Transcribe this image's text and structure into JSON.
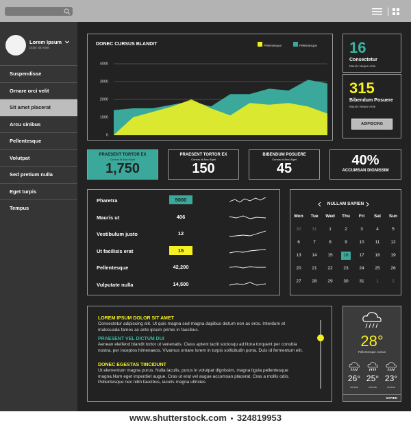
{
  "sidebar": {
    "user_name": "Lorem Ipsum",
    "user_subtitle": "Dolor Sit Amet",
    "selected": 2,
    "menu": [
      "Suspendisse",
      "Ornare orci velit",
      "Sit amet placerat",
      "Arcu sinibus",
      "Pellentesque",
      "Volutpat",
      "Sed pretium nulla",
      "Eget turpis",
      "Tempus"
    ]
  },
  "chart_data": {
    "type": "area",
    "title": "DONEC CURSUS BLANDIT",
    "categories": [
      null,
      null,
      null,
      null,
      null,
      null,
      null,
      null,
      null,
      null,
      null,
      null
    ],
    "series": [
      {
        "name": "Pellentesque",
        "color": "#f0f020",
        "values": [
          0,
          1000,
          1300,
          1600,
          2000,
          1500,
          1100,
          1800,
          1700,
          1800,
          1600,
          1200
        ]
      },
      {
        "name": "Pellentesque",
        "color": "#3aa89a",
        "values": [
          1400,
          1500,
          1500,
          1700,
          1900,
          1600,
          2300,
          2300,
          2600,
          2500,
          3100,
          2900
        ]
      }
    ],
    "ylim": [
      0,
      4000
    ],
    "yticks": [
      0,
      1000,
      2000,
      3000,
      4000
    ],
    "grid": true
  },
  "stats": [
    {
      "value": "16",
      "label": "Consectetur",
      "sublabel": "Mauris Neque Ante",
      "color": "#3ab5a0"
    },
    {
      "value": "315",
      "label": "Bibendum Posuere",
      "sublabel": "Mauris Neque Ante",
      "color": "#f5f020",
      "button": "ADIPISCING"
    }
  ],
  "cards": [
    {
      "title": "PRAESENT TORTOR EX",
      "subtitle": "Cursus Id Arcu Eget",
      "value": "1,750",
      "highlight": true
    },
    {
      "title": "PRAESENT TORTOR EX",
      "subtitle": "Cursus Id Arcu Eget",
      "value": "150"
    },
    {
      "title": "BIBENDUM POSUERE",
      "subtitle": "Cursus Id Arcu Eget",
      "value": "45"
    },
    {
      "value": "40%",
      "title": "ACCUMSAN DIGNISSIM"
    }
  ],
  "table": {
    "rows": [
      {
        "label": "Pharetra",
        "value": "5000",
        "highlight": "#3aa89a"
      },
      {
        "label": "Mauris ut",
        "value": "406"
      },
      {
        "label": "Vestibulum justo",
        "value": "12"
      },
      {
        "label": "Ut facilisis erat",
        "value": "15",
        "highlight": "#f5f020"
      },
      {
        "label": "Pellentesque",
        "value": "42,200"
      },
      {
        "label": "Vulputate nulla",
        "value": "14,500"
      }
    ]
  },
  "calendar": {
    "title": "NULLAM SAPIEN",
    "weekdays": [
      "Mon",
      "Tue",
      "Wed",
      "Thu",
      "Fri",
      "Sat",
      "Sun"
    ],
    "weeks": [
      [
        "30",
        "31",
        "1",
        "2",
        "3",
        "4",
        "5"
      ],
      [
        "6",
        "7",
        "8",
        "9",
        "10",
        "11",
        "12"
      ],
      [
        "13",
        "14",
        "15",
        "16",
        "17",
        "18",
        "19"
      ],
      [
        "20",
        "21",
        "22",
        "23",
        "24",
        "25",
        "26"
      ],
      [
        "27",
        "28",
        "29",
        "30",
        "31",
        "1",
        "2"
      ]
    ],
    "muted": [
      [
        0,
        0
      ],
      [
        0,
        1
      ],
      [
        4,
        5
      ],
      [
        4,
        6
      ]
    ],
    "today": [
      2,
      3
    ]
  },
  "articles": [
    {
      "heading": "LOREM IPSUM DOLOR SIT AMET",
      "color": "#f5f020",
      "body": "Consectetur adipiscing elit. Ut quis magna sed magna dapibus dictum non ac eros. Interdum et malesuada fames ac ante ipsum primis in faucibus."
    },
    {
      "heading": "PRAESENT VEL DICTUM DUI",
      "color": "#3ab5a0",
      "body": "Aenean eleifend blandit tortor ut venenatis. Class aptent taciti sociosqu ad litora torquent per conubia nostra, per inceptos himenaeos. Vivamus ornare lorem in turpis sollicitudin porta. Duis id fermentum elit."
    },
    {
      "heading": "DONEC EGESTAS TINCIDUNT",
      "color": "#f5f020",
      "body": "Ut elementum magna purus. Nulla iaculis, purus in volutpat dignissim, magna ligula pellentesque magna.Nam eget imperdiet augue. Cras ut erat vel augue accumsan placerat. Cras a mollis odio. Pellentesque nec nibh faucibus, iaculis magna ultricies"
    }
  ],
  "weather": {
    "temp": "28°",
    "caption": "Pellentesque cursus",
    "forecast": [
      {
        "temp": "26°",
        "label": "cursus"
      },
      {
        "temp": "25°",
        "label": "cursus"
      },
      {
        "temp": "23°",
        "label": "cursus"
      }
    ],
    "footer": "SAPIEN"
  },
  "footer": {
    "site": "www.shutterstock.com",
    "id": "324819953"
  }
}
